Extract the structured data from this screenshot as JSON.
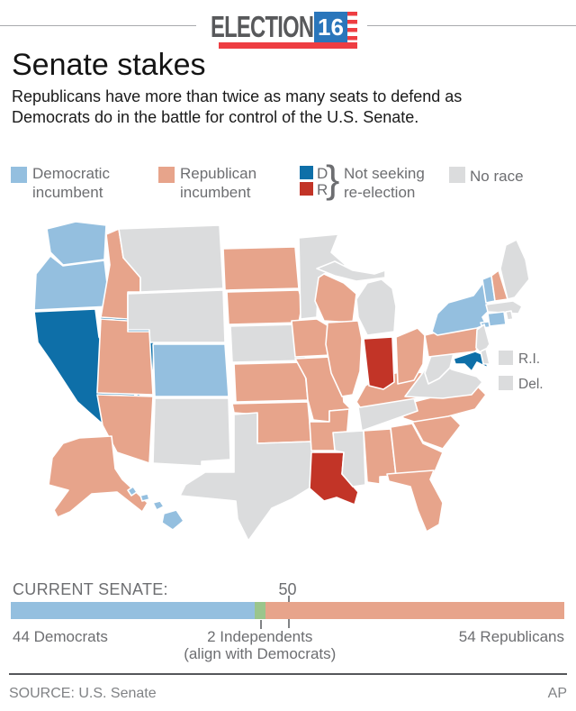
{
  "header": {
    "logo_text": "ELECTION",
    "logo_year": "16"
  },
  "title": "Senate stakes",
  "subtitle": "Republicans have more than twice as many seats to defend as Democrats do in the battle for control of the U.S. Senate.",
  "legend": {
    "dem_incumbent": {
      "label": "Democratic incumbent",
      "color": "#94bfdf"
    },
    "rep_incumbent": {
      "label": "Republican incumbent",
      "color": "#e7a48b"
    },
    "open_seats": {
      "d_label": "D",
      "r_label": "R",
      "brace": "}",
      "label": "Not seeking re-election",
      "d_color": "#0e6fa8",
      "r_color": "#c23427"
    },
    "no_race": {
      "label": "No race",
      "color": "#dbdcdd"
    }
  },
  "map": {
    "categories": {
      "dem_incumbent": "#94bfdf",
      "rep_incumbent": "#e7a48b",
      "dem_open": "#0e6fa8",
      "rep_open": "#c23427",
      "no_race": "#dbdcdd"
    },
    "states": {
      "WA": "dem_incumbent",
      "OR": "dem_incumbent",
      "CO": "dem_incumbent",
      "NY": "dem_incumbent",
      "VT": "dem_incumbent",
      "CT": "dem_incumbent",
      "HI": "dem_incumbent",
      "CA": "dem_open",
      "NV": "dem_open",
      "MD": "dem_open",
      "IN": "rep_open",
      "LA": "rep_open",
      "ID": "rep_incumbent",
      "UT": "rep_incumbent",
      "AZ": "rep_incumbent",
      "ND": "rep_incumbent",
      "SD": "rep_incumbent",
      "KS": "rep_incumbent",
      "OK": "rep_incumbent",
      "MO": "rep_incumbent",
      "IA": "rep_incumbent",
      "AR": "rep_incumbent",
      "WI": "rep_incumbent",
      "IL": "rep_incumbent",
      "KY": "rep_incumbent",
      "AL": "rep_incumbent",
      "GA": "rep_incumbent",
      "SC": "rep_incumbent",
      "NC": "rep_incumbent",
      "FL": "rep_incumbent",
      "OH": "rep_incumbent",
      "PA": "rep_incumbent",
      "NH": "rep_incumbent",
      "AK": "rep_incumbent",
      "MT": "no_race",
      "WY": "no_race",
      "NM": "no_race",
      "TX": "no_race",
      "NE": "no_race",
      "MN": "no_race",
      "MI": "no_race",
      "TN": "no_race",
      "MS": "no_race",
      "VA": "no_race",
      "WV": "no_race",
      "NJ": "no_race",
      "DE": "no_race",
      "RI": "no_race",
      "MA": "no_race",
      "ME": "no_race"
    },
    "small_state_labels": [
      {
        "id": "RI",
        "label": "R.I."
      },
      {
        "id": "DE",
        "label": "Del."
      }
    ]
  },
  "current_senate": {
    "label": "CURRENT SENATE:",
    "majority_tick": "50",
    "total": 100,
    "segments": [
      {
        "name": "democrats",
        "value": 44,
        "label": "44 Democrats",
        "color": "#94bfdf"
      },
      {
        "name": "independents",
        "value": 2,
        "label": "2 Independents",
        "sublabel": "(align with Democrats)",
        "color": "#9bc58c"
      },
      {
        "name": "republicans",
        "value": 54,
        "label": "54 Republicans",
        "color": "#e7a48b"
      }
    ]
  },
  "footer": {
    "source": "SOURCE: U.S. Senate",
    "credit": "AP"
  },
  "chart_data": {
    "type": "bar",
    "title": "CURRENT SENATE:",
    "categories": [
      "Current Senate seats"
    ],
    "series": [
      {
        "name": "Democrats",
        "values": [
          44
        ]
      },
      {
        "name": "Independents (align with Democrats)",
        "values": [
          2
        ]
      },
      {
        "name": "Republicans",
        "values": [
          54
        ]
      }
    ],
    "xlim": [
      0,
      100
    ],
    "annotations": [
      "50 majority marker at midpoint"
    ],
    "legend_position": "below-bar"
  }
}
